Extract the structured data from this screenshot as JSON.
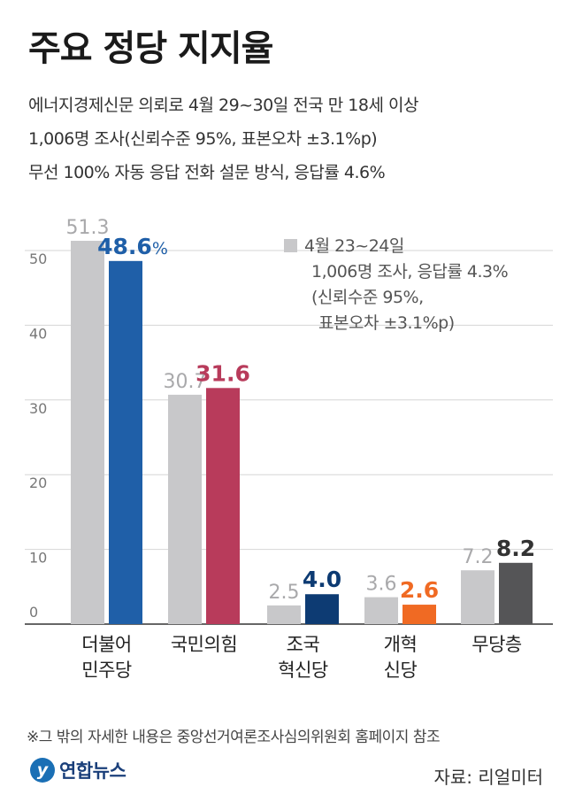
{
  "header": {
    "title": "주요 정당 지지율",
    "subtitle_lines": [
      "에너지경제신문 의뢰로 4월 29~30일 전국 만 18세 이상",
      "1,006명 조사(신뢰수준 95%, 표본오차 ±3.1%p)",
      "무선 100% 자동 응답 전화 설문 방식, 응답률 4.6%"
    ]
  },
  "legend": {
    "lines": [
      "4월 23~24일",
      "1,006명 조사, 응답률 4.3%",
      "(신뢰수준 95%,",
      "표본오차 ±3.1%p)"
    ],
    "swatch_color": "#c8c8ca"
  },
  "chart_data": {
    "type": "bar",
    "categories": [
      "더불어\n민주당",
      "국민의힘",
      "조국\n혁신당",
      "개혁\n신당",
      "무당층"
    ],
    "y_ticks": [
      "0",
      "10",
      "20",
      "30",
      "40",
      "50"
    ],
    "ylim": [
      0,
      50
    ],
    "grid": true,
    "legend_position": "top-right",
    "series": [
      {
        "name": "4월 23~24일",
        "values": [
          51.3,
          30.7,
          2.5,
          3.6,
          7.2
        ],
        "labels": [
          "51.3",
          "30.7",
          "2.5",
          "3.6",
          "7.2"
        ],
        "colors": [
          "#c8c8ca",
          "#c8c8ca",
          "#c8c8ca",
          "#c8c8ca",
          "#c8c8ca"
        ],
        "label_color": "#a9a9ab"
      },
      {
        "values": [
          48.6,
          31.6,
          4.0,
          2.6,
          8.2
        ],
        "labels": [
          "48.6",
          "31.6",
          "4.0",
          "2.6",
          "8.2"
        ],
        "first_label_unit": "%",
        "colors": [
          "#1f5fa8",
          "#b83b5b",
          "#0d3b73",
          "#f06a23",
          "#555557"
        ],
        "label_colors": [
          "#1f5fa8",
          "#b83b5b",
          "#0d3b73",
          "#f06a23",
          "#333333"
        ]
      }
    ]
  },
  "footer": {
    "note": "※그 밖의 자세한 내용은 중앙선거여론조사심의위원회 홈페이지 참조",
    "logo_text": "연합뉴스",
    "logo_mark": "y",
    "source": "자료: 리얼미터"
  }
}
